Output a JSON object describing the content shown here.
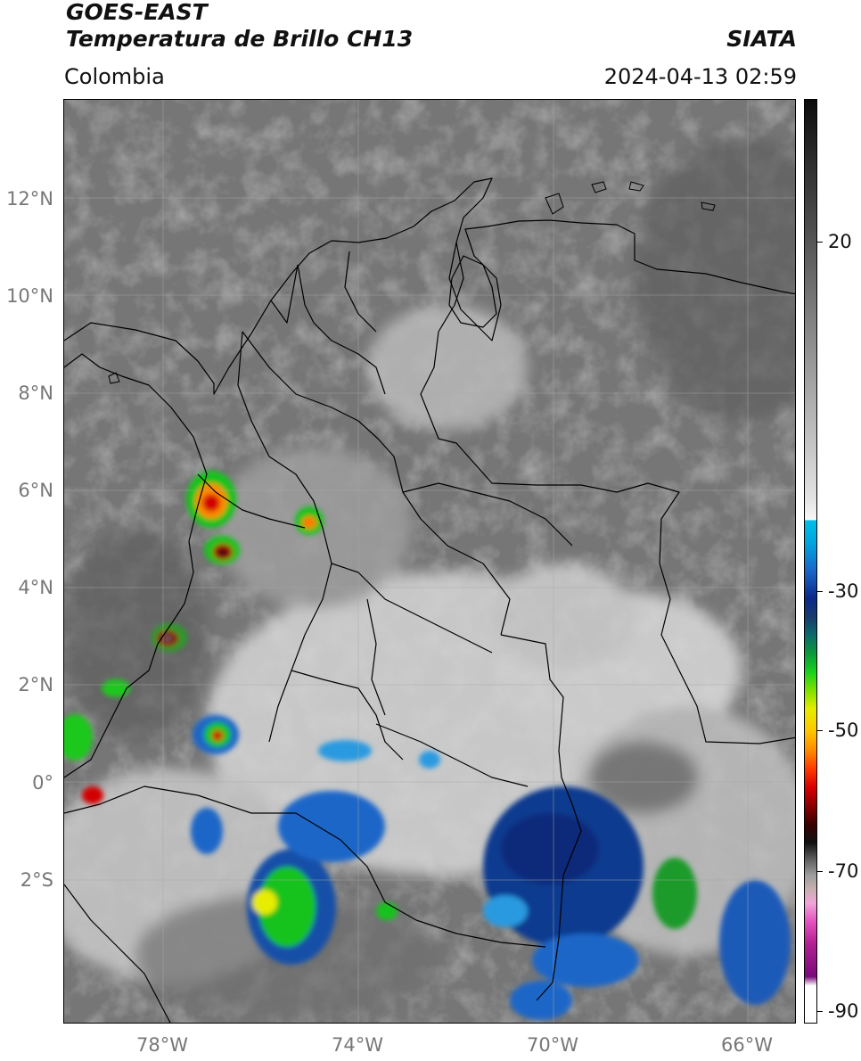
{
  "header": {
    "line1": "GOES-EAST",
    "line2": "Temperatura de Brillo CH13",
    "region": "Colombia",
    "organization": "SIATA",
    "timestamp": "2024-04-13 02:59"
  },
  "axes": {
    "lat_labels": [
      "12°N",
      "10°N",
      "8°N",
      "6°N",
      "4°N",
      "2°N",
      "0°",
      "2°S"
    ],
    "lon_labels": [
      "78°W",
      "74°W",
      "70°W",
      "66°W"
    ]
  },
  "colorbar": {
    "ticks": [
      "20",
      "-30",
      "-50",
      "-70",
      "-90"
    ]
  }
}
